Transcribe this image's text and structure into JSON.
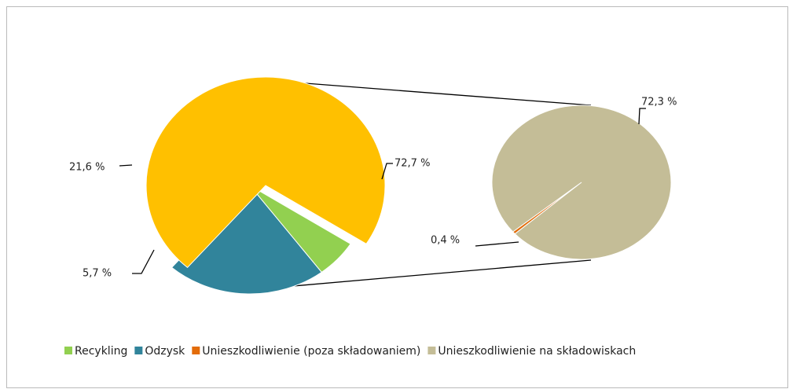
{
  "chart_data": {
    "type": "pie",
    "categories": [
      "Recykling",
      "Odzysk",
      null
    ],
    "values": [
      5.7,
      21.6,
      72.7
    ],
    "value_labels": [
      "5,7 %",
      "21,6 %",
      "72,7 %"
    ],
    "colors": [
      "#92d050",
      "#31849b",
      "#ffc000"
    ],
    "secondary": {
      "categories": [
        "Unieszkodliwienie (poza składowaniem)",
        "Unieszkodliwienie na składowiskach"
      ],
      "values": [
        0.4,
        72.3
      ],
      "value_labels": [
        "0,4 %",
        "72,3 %"
      ],
      "colors": [
        "#e36c09",
        "#c4bd97"
      ]
    }
  }
}
